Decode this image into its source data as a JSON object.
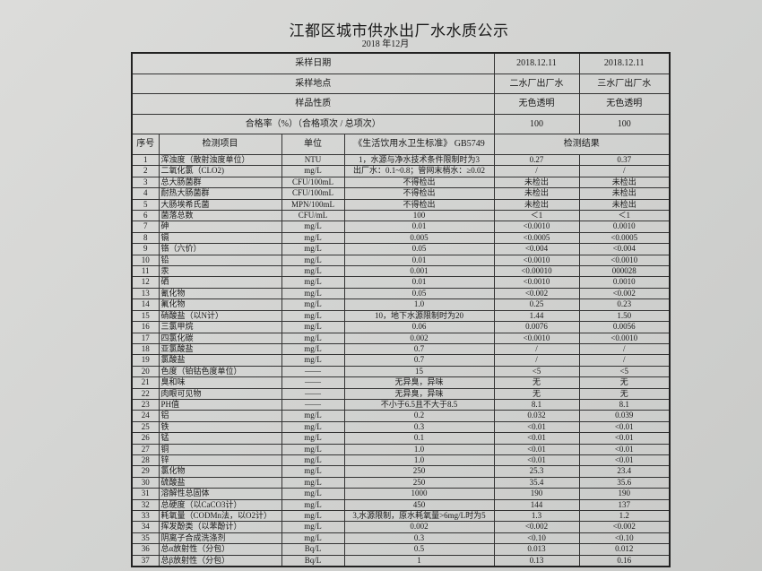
{
  "title": "江都区城市供水出厂水水质公示",
  "subtitle": "2018 年12月",
  "header_rows": [
    {
      "label": "采样日期",
      "values": [
        "2018.12.11",
        "2018.12.11"
      ]
    },
    {
      "label": "采样地点",
      "values": [
        "二水厂出厂水",
        "三水厂出厂水"
      ]
    },
    {
      "label": "样品性质",
      "values": [
        "无色透明",
        "无色透明"
      ]
    },
    {
      "label": "合格率（%）（合格项次 / 总项次）",
      "values": [
        "100",
        "100"
      ]
    }
  ],
  "columns": {
    "seq": "序号",
    "item": "检测项目",
    "unit": "单位",
    "standard": "《生活饮用水卫生标准》 GB5749",
    "result": "检测结果"
  },
  "rows": [
    [
      "1",
      "浑浊度（散射浊度单位）",
      "NTU",
      "1，水源与净水技术条件限制时为3",
      "0.27",
      "0.37"
    ],
    [
      "2",
      "二氧化氯（CLO2)",
      "mg/L",
      "出厂水：0.1~0.8；管网末梢水：≥0.02",
      "/",
      "/"
    ],
    [
      "3",
      "总大肠菌群",
      "CFU/100mL",
      "不得检出",
      "未检出",
      "未检出"
    ],
    [
      "4",
      "耐热大肠菌群",
      "CFU/100mL",
      "不得检出",
      "未检出",
      "未检出"
    ],
    [
      "5",
      "大肠埃希氏菌",
      "MPN/100mL",
      "不得检出",
      "未检出",
      "未检出"
    ],
    [
      "6",
      "菌落总数",
      "CFU/mL",
      "100",
      "＜1",
      "＜1"
    ],
    [
      "7",
      "砷",
      "mg/L",
      "0.01",
      "<0.0010",
      "0.0010"
    ],
    [
      "8",
      "镉",
      "mg/L",
      "0.005",
      "<0.0005",
      "<0.0005"
    ],
    [
      "9",
      "铬（六价）",
      "mg/L",
      "0.05",
      "<0.004",
      "<0.004"
    ],
    [
      "10",
      "铅",
      "mg/L",
      "0.01",
      "<0.0010",
      "<0.0010"
    ],
    [
      "11",
      "汞",
      "mg/L",
      "0.001",
      "<0.00010",
      "000028"
    ],
    [
      "12",
      "硒",
      "mg/L",
      "0.01",
      "<0.0010",
      "0.0010"
    ],
    [
      "13",
      "氰化物",
      "mg/L",
      "0.05",
      "<0.002",
      "<0.002"
    ],
    [
      "14",
      "氟化物",
      "mg/L",
      "1.0",
      "0.25",
      "0.23"
    ],
    [
      "15",
      "硝酸盐（以N计）",
      "mg/L",
      "10，地下水源限制时为20",
      "1.44",
      "1.50"
    ],
    [
      "16",
      "三氯甲烷",
      "mg/L",
      "0.06",
      "0.0076",
      "0.0056"
    ],
    [
      "17",
      "四氯化碳",
      "mg/L",
      "0.002",
      "<0.0010",
      "<0.0010"
    ],
    [
      "18",
      "亚氯酸盐",
      "mg/L",
      "0.7",
      "/",
      "/"
    ],
    [
      "19",
      "氯酸盐",
      "mg/L",
      "0.7",
      "/",
      "/"
    ],
    [
      "20",
      "色度（铂钴色度单位）",
      "——",
      "15",
      "<5",
      "<5"
    ],
    [
      "21",
      "臭和味",
      "——",
      "无异臭，异味",
      "无",
      "无"
    ],
    [
      "22",
      "肉眼可见物",
      "——",
      "无异臭，异味",
      "无",
      "无"
    ],
    [
      "23",
      "PH值",
      "——",
      "不小于6.5且不大于8.5",
      "8.1",
      "8.1"
    ],
    [
      "24",
      "铝",
      "mg/L",
      "0.2",
      "0.032",
      "0.039"
    ],
    [
      "25",
      "铁",
      "mg/L",
      "0.3",
      "<0.01",
      "<0.01"
    ],
    [
      "26",
      "锰",
      "mg/L",
      "0.1",
      "<0.01",
      "<0.01"
    ],
    [
      "27",
      "铜",
      "mg/L",
      "1.0",
      "<0.01",
      "<0.01"
    ],
    [
      "28",
      "锌",
      "mg/L",
      "1.0",
      "<0.01",
      "<0.01"
    ],
    [
      "29",
      "氯化物",
      "mg/L",
      "250",
      "25.3",
      "23.4"
    ],
    [
      "30",
      "硫酸盐",
      "mg/L",
      "250",
      "35.4",
      "35.6"
    ],
    [
      "31",
      "溶解性总固体",
      "mg/L",
      "1000",
      "190",
      "190"
    ],
    [
      "32",
      "总硬度（以CaCO3计）",
      "mg/L",
      "450",
      "144",
      "137"
    ],
    [
      "33",
      "耗氧量（CODMn法，以O2计）",
      "mg/L",
      "3,水源限制，原水耗氧量>6mg/L时为5",
      "1.3",
      "1.2"
    ],
    [
      "34",
      "挥发酚类（以苯酚计）",
      "mg/L",
      "0.002",
      "<0.002",
      "<0.002"
    ],
    [
      "35",
      "阴离子合成洗涤剂",
      "mg/L",
      "0.3",
      "<0.10",
      "<0.10"
    ],
    [
      "36",
      "总α放射性（分包）",
      "Bq/L",
      "0.5",
      "0.013",
      "0.012"
    ],
    [
      "37",
      "总β放射性（分包）",
      "Bq/L",
      "1",
      "0.13",
      "0.16"
    ]
  ]
}
